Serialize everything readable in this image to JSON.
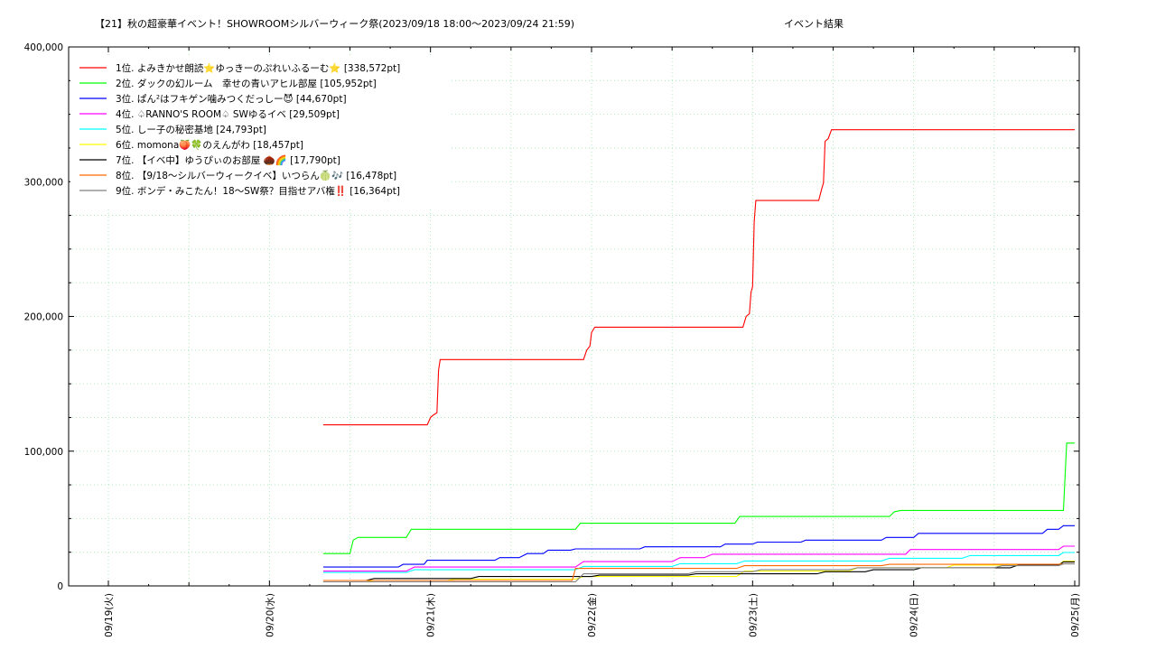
{
  "chart_data": {
    "type": "line",
    "title": "【21】秋の超豪華イベント！SHOWROOMシルバーウィーク祭(2023/09/18 18:00～2023/09/24 21:59)",
    "subtitle": "イベント結果",
    "xlabel": "",
    "ylabel": "",
    "x_tick_labels": [
      "09/19(火)",
      "09/20(水)",
      "09/21(木)",
      "09/22(金)",
      "09/23(土)",
      "09/24(日)",
      "09/25(月)"
    ],
    "x_range_days": [
      0,
      6
    ],
    "ylim": [
      0,
      400000
    ],
    "y_tick_labels": [
      "0",
      "100,000",
      "200,000",
      "300,000",
      "400,000"
    ],
    "y_ticks": [
      0,
      100000,
      200000,
      300000,
      400000
    ],
    "grid": true,
    "legend_position": "top-left",
    "series": [
      {
        "name": "1位. よみきかせ朗読⭐ゆっきーのぷれいふるーむ⭐ [338,572pt]",
        "color": "#ff0000",
        "points": [
          [
            1.334,
            119500
          ],
          [
            1.98,
            119500
          ],
          [
            2.0,
            125000
          ],
          [
            2.02,
            127000
          ],
          [
            2.04,
            128500
          ],
          [
            2.05,
            160000
          ],
          [
            2.06,
            168000
          ],
          [
            2.95,
            168000
          ],
          [
            2.97,
            175000
          ],
          [
            2.99,
            178000
          ],
          [
            3.0,
            188000
          ],
          [
            3.02,
            192000
          ],
          [
            3.94,
            192000
          ],
          [
            3.96,
            200000
          ],
          [
            3.98,
            202000
          ],
          [
            3.99,
            218000
          ],
          [
            4.0,
            222000
          ],
          [
            4.01,
            270000
          ],
          [
            4.02,
            286000
          ],
          [
            4.41,
            286000
          ],
          [
            4.43,
            295000
          ],
          [
            4.44,
            299000
          ],
          [
            4.45,
            330000
          ],
          [
            4.47,
            332000
          ],
          [
            4.49,
            338572
          ],
          [
            6.0,
            338572
          ]
        ]
      },
      {
        "name": "2位. ダックの幻ルーム　幸せの青いアヒル部屋 [105,952pt]",
        "color": "#00ff00",
        "points": [
          [
            1.334,
            24000
          ],
          [
            1.5,
            24000
          ],
          [
            1.52,
            34000
          ],
          [
            1.55,
            36000
          ],
          [
            1.85,
            36000
          ],
          [
            1.88,
            42000
          ],
          [
            2.9,
            42000
          ],
          [
            2.93,
            46500
          ],
          [
            3.89,
            46500
          ],
          [
            3.92,
            51500
          ],
          [
            4.85,
            51500
          ],
          [
            4.88,
            55000
          ],
          [
            4.92,
            56000
          ],
          [
            5.93,
            56000
          ],
          [
            5.95,
            106000
          ],
          [
            6.0,
            106000
          ]
        ]
      },
      {
        "name": "3位. ぱん²はフキゲン噛みつくだっしー😈 [44,670pt]",
        "color": "#0000ff",
        "points": [
          [
            1.334,
            14000
          ],
          [
            1.8,
            14000
          ],
          [
            1.83,
            16000
          ],
          [
            1.96,
            16000
          ],
          [
            1.98,
            19000
          ],
          [
            2.4,
            19000
          ],
          [
            2.43,
            21000
          ],
          [
            2.55,
            21000
          ],
          [
            2.6,
            24000
          ],
          [
            2.7,
            24000
          ],
          [
            2.73,
            26500
          ],
          [
            2.87,
            26500
          ],
          [
            2.9,
            27500
          ],
          [
            3.3,
            27500
          ],
          [
            3.33,
            29000
          ],
          [
            3.8,
            29000
          ],
          [
            3.83,
            31000
          ],
          [
            4.0,
            31000
          ],
          [
            4.03,
            32500
          ],
          [
            4.3,
            32500
          ],
          [
            4.33,
            34000
          ],
          [
            4.8,
            34000
          ],
          [
            4.83,
            36000
          ],
          [
            5.0,
            36000
          ],
          [
            5.03,
            39000
          ],
          [
            5.8,
            39000
          ],
          [
            5.83,
            42000
          ],
          [
            5.9,
            42000
          ],
          [
            5.93,
            44670
          ],
          [
            6.0,
            44670
          ]
        ]
      },
      {
        "name": "4位. ♤RANNO'S ROOM♤ SWゆるイベ [29,509pt]",
        "color": "#ff00ff",
        "points": [
          [
            1.334,
            11000
          ],
          [
            1.85,
            11000
          ],
          [
            1.9,
            14000
          ],
          [
            2.9,
            14000
          ],
          [
            2.95,
            18000
          ],
          [
            3.5,
            18000
          ],
          [
            3.55,
            21000
          ],
          [
            3.7,
            21000
          ],
          [
            3.75,
            23500
          ],
          [
            4.95,
            23500
          ],
          [
            4.98,
            27000
          ],
          [
            5.9,
            27000
          ],
          [
            5.93,
            29509
          ],
          [
            6.0,
            29509
          ]
        ]
      },
      {
        "name": "5位. しー子の秘密基地 [24,793pt]",
        "color": "#00ffff",
        "points": [
          [
            1.334,
            10000
          ],
          [
            1.85,
            10000
          ],
          [
            1.9,
            12000
          ],
          [
            2.9,
            12000
          ],
          [
            2.95,
            14500
          ],
          [
            3.5,
            14500
          ],
          [
            3.55,
            16500
          ],
          [
            3.9,
            16500
          ],
          [
            3.95,
            18500
          ],
          [
            4.8,
            18500
          ],
          [
            4.85,
            20500
          ],
          [
            5.3,
            20500
          ],
          [
            5.35,
            22500
          ],
          [
            5.9,
            22500
          ],
          [
            5.93,
            24793
          ],
          [
            6.0,
            24793
          ]
        ]
      },
      {
        "name": "6位. momona🍑🍀のえんがわ [18,457pt]",
        "color": "#ffff00",
        "points": [
          [
            1.334,
            3000
          ],
          [
            1.6,
            3000
          ],
          [
            1.65,
            4000
          ],
          [
            2.1,
            4000
          ],
          [
            2.15,
            5000
          ],
          [
            2.9,
            5000
          ],
          [
            2.95,
            7000
          ],
          [
            3.9,
            7000
          ],
          [
            3.95,
            11000
          ],
          [
            4.6,
            11000
          ],
          [
            4.65,
            13500
          ],
          [
            5.2,
            13500
          ],
          [
            5.25,
            15500
          ],
          [
            5.9,
            15500
          ],
          [
            5.93,
            18457
          ],
          [
            6.0,
            18457
          ]
        ]
      },
      {
        "name": "7位. 【イベ中】ゆうぴぃのお部屋 🌰🌈 [17,790pt]",
        "color": "#000000",
        "points": [
          [
            1.334,
            4000
          ],
          [
            1.6,
            4000
          ],
          [
            1.65,
            5500
          ],
          [
            2.25,
            5500
          ],
          [
            2.3,
            7000
          ],
          [
            3.0,
            7000
          ],
          [
            3.05,
            8000
          ],
          [
            3.6,
            8000
          ],
          [
            3.65,
            9000
          ],
          [
            4.4,
            9000
          ],
          [
            4.45,
            10500
          ],
          [
            4.7,
            10500
          ],
          [
            4.75,
            12000
          ],
          [
            5.0,
            12000
          ],
          [
            5.05,
            13500
          ],
          [
            5.6,
            13500
          ],
          [
            5.65,
            15500
          ],
          [
            5.9,
            15500
          ],
          [
            5.93,
            17790
          ],
          [
            6.0,
            17790
          ]
        ]
      },
      {
        "name": "8位. 【9/18～シルバーウィークイベ】いつらん🍈🎶 [16,478pt]",
        "color": "#ff6600",
        "points": [
          [
            1.334,
            4000
          ],
          [
            2.88,
            4000
          ],
          [
            2.9,
            13000
          ],
          [
            3.9,
            13000
          ],
          [
            3.95,
            15000
          ],
          [
            4.8,
            15000
          ],
          [
            4.85,
            16000
          ],
          [
            5.9,
            16000
          ],
          [
            5.93,
            16478
          ],
          [
            6.0,
            16478
          ]
        ]
      },
      {
        "name": "9位. ボンデ・みこたん！18～SW祭？目指せアバ権‼️ [16,364pt]",
        "color": "#808080",
        "points": [
          [
            1.334,
            3000
          ],
          [
            2.9,
            3000
          ],
          [
            2.95,
            9000
          ],
          [
            3.6,
            9000
          ],
          [
            3.65,
            10500
          ],
          [
            4.0,
            10500
          ],
          [
            4.05,
            12000
          ],
          [
            4.6,
            12000
          ],
          [
            4.65,
            13500
          ],
          [
            5.5,
            13500
          ],
          [
            5.55,
            15000
          ],
          [
            5.9,
            15000
          ],
          [
            5.93,
            16364
          ],
          [
            6.0,
            16364
          ]
        ]
      }
    ]
  }
}
